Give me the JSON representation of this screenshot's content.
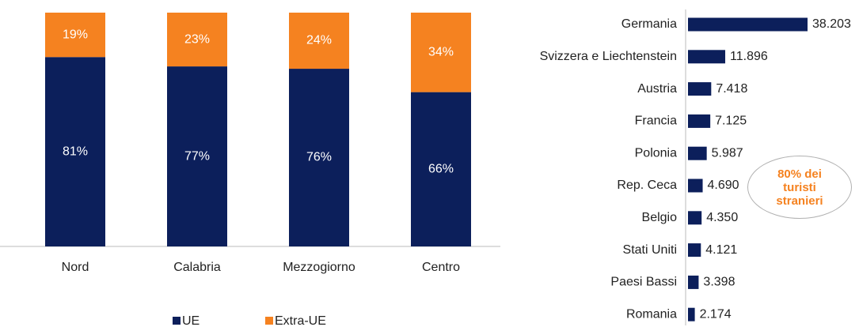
{
  "chart_data": [
    {
      "type": "bar",
      "stacked": true,
      "categories": [
        "Nord",
        "Calabria",
        "Mezzogiorno",
        "Centro"
      ],
      "series": [
        {
          "name": "UE",
          "color": "#0c1f5b",
          "values": [
            81,
            77,
            76,
            66
          ],
          "value_labels": [
            "81%",
            "77%",
            "76%",
            "66%"
          ]
        },
        {
          "name": "Extra-UE",
          "color": "#f58220",
          "values": [
            19,
            23,
            24,
            34
          ],
          "value_labels": [
            "19%",
            "23%",
            "24%",
            "34%"
          ]
        }
      ]
    },
    {
      "type": "barh",
      "categories": [
        "Germania",
        "Svizzera e Liechtenstein",
        "Austria",
        "Francia",
        "Polonia",
        "Rep. Ceca",
        "Belgio",
        "Stati Uniti",
        "Paesi Bassi",
        "Romania"
      ],
      "values": [
        38203,
        11896,
        7418,
        7125,
        5987,
        4690,
        4350,
        4121,
        3398,
        2174
      ],
      "value_labels": [
        "38.203",
        "11.896",
        "7.418",
        "7.125",
        "5.987",
        "4.690",
        "4.350",
        "4.121",
        "3.398",
        "2.174"
      ],
      "color": "#0c1f5b",
      "annotation": "80% dei turisti stranieri"
    }
  ]
}
